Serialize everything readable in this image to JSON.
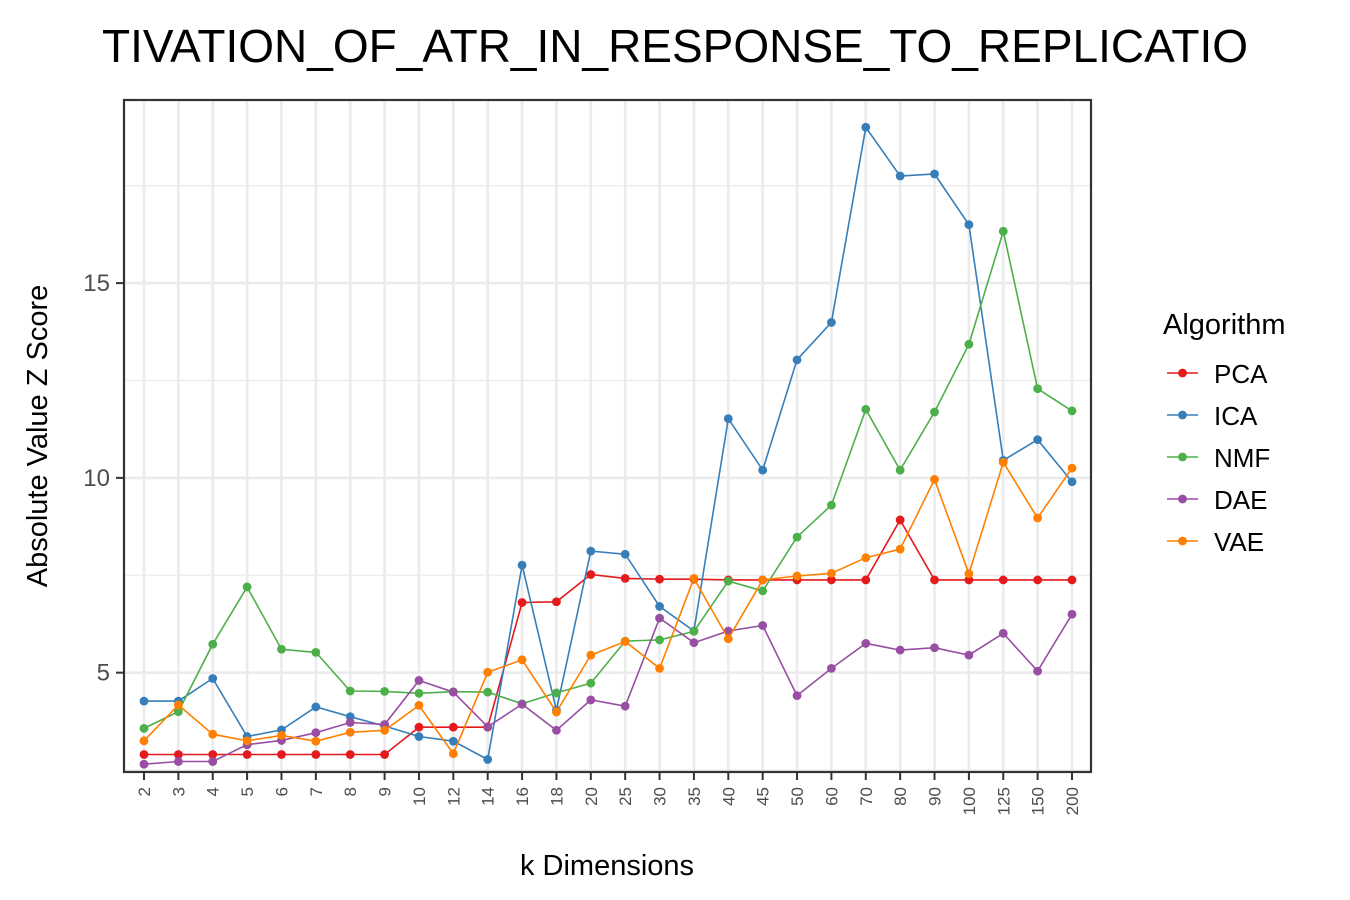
{
  "chart_data": {
    "type": "line",
    "title": "TIVATION_OF_ATR_IN_RESPONSE_TO_REPLICATIO",
    "xlabel": "k Dimensions",
    "ylabel": "Absolute Value Z Score",
    "categories": [
      "2",
      "3",
      "4",
      "5",
      "6",
      "7",
      "8",
      "9",
      "10",
      "12",
      "14",
      "16",
      "18",
      "20",
      "25",
      "30",
      "35",
      "40",
      "45",
      "50",
      "60",
      "70",
      "80",
      "90",
      "100",
      "125",
      "150",
      "200"
    ],
    "yticks": [
      5,
      10,
      15
    ],
    "ylim": [
      2.45,
      19.7
    ],
    "grid": true,
    "legend": {
      "title": "Algorithm",
      "placement": "right"
    },
    "series": [
      {
        "name": "PCA",
        "color": "#e41a1c",
        "values": [
          2.9,
          2.9,
          2.9,
          2.9,
          2.9,
          2.9,
          2.9,
          2.9,
          3.6,
          3.6,
          3.6,
          6.8,
          6.82,
          7.52,
          7.42,
          7.4,
          7.4,
          7.38,
          7.38,
          7.38,
          7.38,
          7.38,
          8.92,
          7.38,
          7.38,
          7.38,
          7.38,
          7.38
        ]
      },
      {
        "name": "ICA",
        "color": "#377eb8",
        "values": [
          4.27,
          4.27,
          4.85,
          3.36,
          3.53,
          4.12,
          3.87,
          3.63,
          3.36,
          3.24,
          2.77,
          7.76,
          4.04,
          8.12,
          8.04,
          6.7,
          6.07,
          11.52,
          10.2,
          13.03,
          13.99,
          19.0,
          17.75,
          17.8,
          16.5,
          10.45,
          10.98,
          9.9
        ]
      },
      {
        "name": "NMF",
        "color": "#4daf4a",
        "values": [
          3.57,
          4.0,
          5.73,
          7.2,
          5.6,
          5.52,
          4.53,
          4.52,
          4.47,
          4.51,
          4.5,
          4.2,
          4.48,
          4.73,
          5.81,
          5.84,
          6.06,
          7.35,
          7.1,
          8.48,
          9.3,
          11.76,
          10.2,
          11.69,
          13.43,
          16.33,
          12.29,
          11.72
        ]
      },
      {
        "name": "DAE",
        "color": "#984ea3",
        "values": [
          2.65,
          2.72,
          2.72,
          3.15,
          3.26,
          3.46,
          3.72,
          3.67,
          4.8,
          4.5,
          3.61,
          4.19,
          3.52,
          4.3,
          4.14,
          6.4,
          5.77,
          6.07,
          6.21,
          4.41,
          5.11,
          5.75,
          5.58,
          5.64,
          5.45,
          6.01,
          5.04,
          6.5
        ]
      },
      {
        "name": "VAE",
        "color": "#ff7f00",
        "values": [
          3.25,
          4.17,
          3.42,
          3.25,
          3.39,
          3.24,
          3.47,
          3.52,
          4.16,
          2.92,
          5.01,
          5.33,
          3.99,
          5.45,
          5.8,
          5.11,
          7.42,
          5.87,
          7.38,
          7.48,
          7.55,
          7.95,
          8.17,
          9.96,
          7.54,
          10.4,
          8.97,
          10.25
        ]
      }
    ]
  }
}
